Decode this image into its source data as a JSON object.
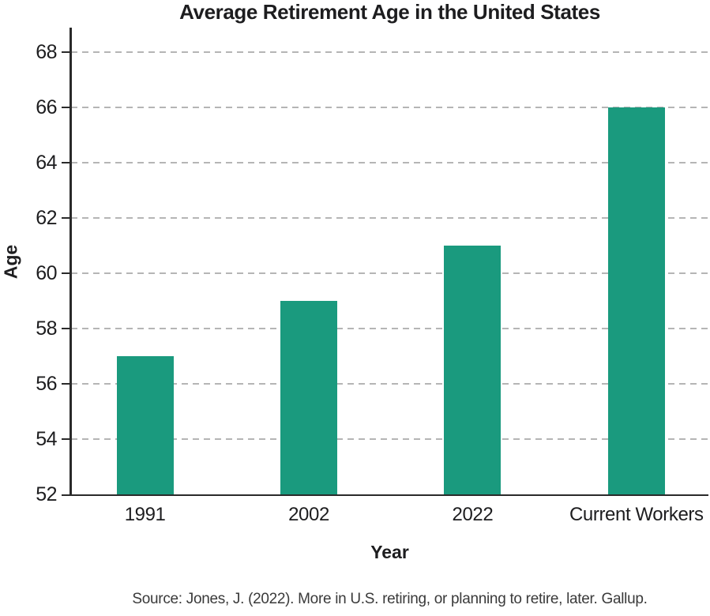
{
  "chart_data": {
    "type": "bar",
    "title": "Average Retirement Age in the United States",
    "xlabel": "Year",
    "ylabel": "Age",
    "categories": [
      "1991",
      "2002",
      "2022",
      "Current Workers"
    ],
    "values": [
      57,
      59,
      61,
      66
    ],
    "yticks": [
      52,
      54,
      56,
      58,
      60,
      62,
      64,
      66,
      68
    ],
    "ylim": [
      52,
      68.9
    ],
    "grid": "horizontal-dashed",
    "legend": "none",
    "bar_color": "#1a9a7e",
    "axis_color": "#2a2a2a",
    "grid_color": "#b5b5b5",
    "text_color": "#1d1d1f"
  },
  "caption": {
    "source": "Source: Jones, J. (2022). More in U.S. retiring, or planning to retire, later. Gallup."
  }
}
